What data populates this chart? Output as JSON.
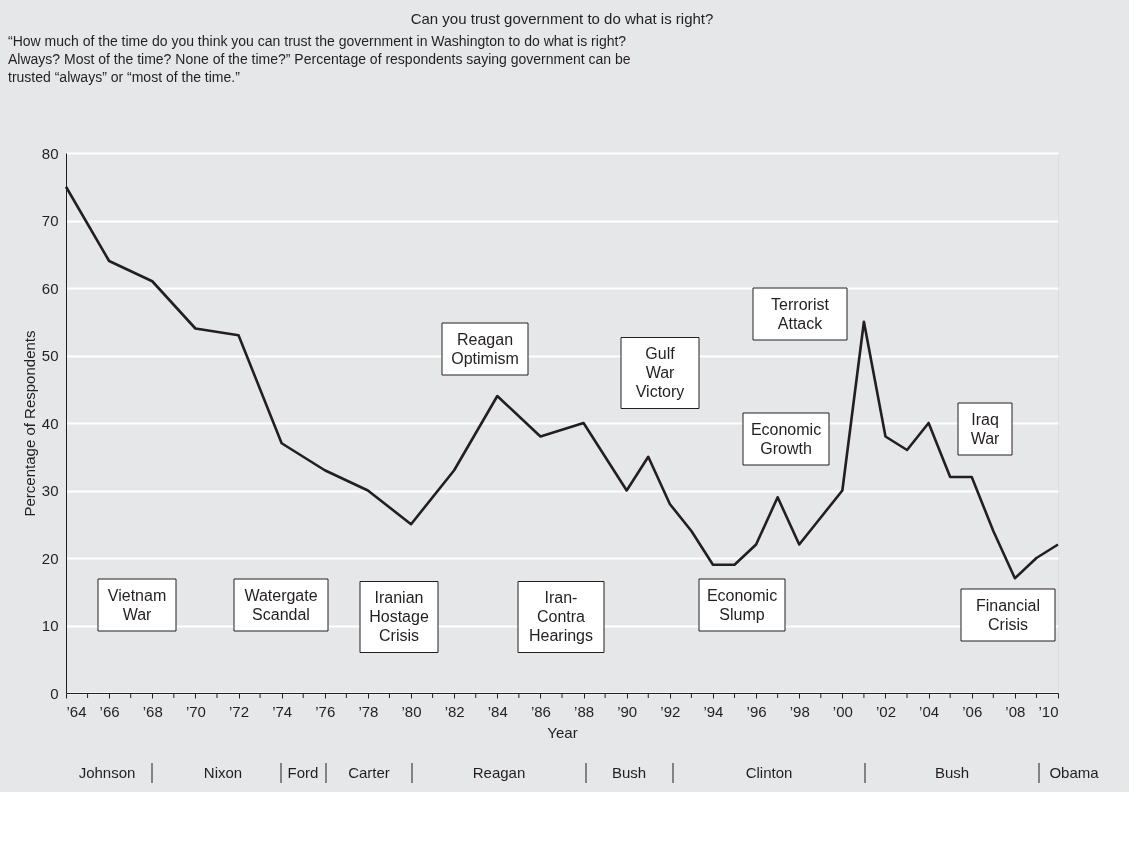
{
  "chart_data": {
    "type": "line",
    "title": "Can you trust government to do what is right?",
    "subtitle": "“How much of the time do you think you can trust the government in Washington to do what is right?\nAlways? Most of the time? None of the time?” Percentage of respondents saying government can be\ntrusted “always” or “most of the time.”",
    "xlabel": "Year",
    "ylabel": "Percentage of Respondents",
    "x": [
      1964,
      1966,
      1968,
      1970,
      1972,
      1974,
      1976,
      1978,
      1980,
      1982,
      1984,
      1986,
      1988,
      1990,
      1991,
      1992,
      1993,
      1994,
      1995,
      1996,
      1997,
      1998,
      1999,
      2000,
      2001,
      2002,
      2003,
      2004,
      2005,
      2006,
      2007,
      2008,
      2009,
      2010
    ],
    "series": [
      {
        "color": "#231f20",
        "values": [
          75,
          64,
          61,
          54,
          53,
          37,
          33,
          30,
          25,
          33,
          44,
          38,
          40,
          30,
          35,
          28,
          24,
          19,
          19,
          22,
          29,
          22,
          26,
          30,
          55,
          38,
          36,
          40,
          32,
          32,
          24,
          17,
          20,
          22
        ]
      }
    ],
    "xlim": [
      1964,
      2010
    ],
    "ylim": [
      0,
      80
    ],
    "xticks": [
      {
        "value": 1964,
        "label": "’64"
      },
      {
        "value": 1965,
        "label": null
      },
      {
        "value": 1966,
        "label": "’66"
      },
      {
        "value": 1967,
        "label": null
      },
      {
        "value": 1968,
        "label": "’68"
      },
      {
        "value": 1969,
        "label": null
      },
      {
        "value": 1970,
        "label": "’70"
      },
      {
        "value": 1971,
        "label": null
      },
      {
        "value": 1972,
        "label": "’72"
      },
      {
        "value": 1973,
        "label": null
      },
      {
        "value": 1974,
        "label": "’74"
      },
      {
        "value": 1975,
        "label": null
      },
      {
        "value": 1976,
        "label": "’76"
      },
      {
        "value": 1977,
        "label": null
      },
      {
        "value": 1978,
        "label": "’78"
      },
      {
        "value": 1979,
        "label": null
      },
      {
        "value": 1980,
        "label": "’80"
      },
      {
        "value": 1981,
        "label": null
      },
      {
        "value": 1982,
        "label": "’82"
      },
      {
        "value": 1983,
        "label": null
      },
      {
        "value": 1984,
        "label": "’84"
      },
      {
        "value": 1985,
        "label": null
      },
      {
        "value": 1986,
        "label": "’86"
      },
      {
        "value": 1987,
        "label": null
      },
      {
        "value": 1988,
        "label": "’88"
      },
      {
        "value": 1989,
        "label": null
      },
      {
        "value": 1990,
        "label": "’90"
      },
      {
        "value": 1991,
        "label": null
      },
      {
        "value": 1992,
        "label": "’92"
      },
      {
        "value": 1993,
        "label": null
      },
      {
        "value": 1994,
        "label": "’94"
      },
      {
        "value": 1995,
        "label": null
      },
      {
        "value": 1996,
        "label": "’96"
      },
      {
        "value": 1997,
        "label": null
      },
      {
        "value": 1998,
        "label": "’98"
      },
      {
        "value": 1999,
        "label": null
      },
      {
        "value": 2000,
        "label": "’00"
      },
      {
        "value": 2001,
        "label": null
      },
      {
        "value": 2002,
        "label": "’02"
      },
      {
        "value": 2003,
        "label": null
      },
      {
        "value": 2004,
        "label": "’04"
      },
      {
        "value": 2005,
        "label": null
      },
      {
        "value": 2006,
        "label": "’06"
      },
      {
        "value": 2007,
        "label": null
      },
      {
        "value": 2008,
        "label": "’08"
      },
      {
        "value": 2009,
        "label": null
      },
      {
        "value": 2010,
        "label": "’10"
      }
    ],
    "yticks": [
      0,
      10,
      20,
      30,
      40,
      50,
      60,
      70,
      80
    ],
    "grid": "y",
    "legend": false,
    "marker": "none",
    "line_style": "solid",
    "annotations": [
      "Vietnam\nWar",
      "Watergate\nScandal",
      "Iranian\nHostage\nCrisis",
      "Reagan\nOptimism",
      "Iran-\nContra\nHearings",
      "Gulf\nWar\nVictory",
      "Economic\nSlump",
      "Economic\nGrowth",
      "Terrorist\nAttack",
      "Iraq\nWar",
      "Financial\nCrisis",
      "Johnson",
      "Nixon",
      "Ford",
      "Carter",
      "Reagan",
      "Bush",
      "Clinton",
      "Bush",
      "Obama"
    ]
  }
}
